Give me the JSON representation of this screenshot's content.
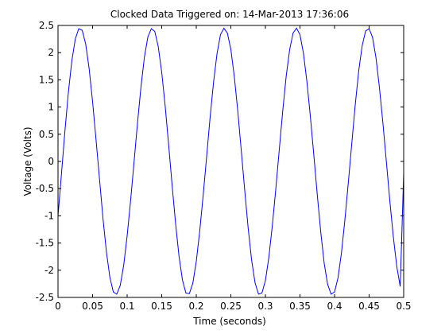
{
  "chart_data": {
    "type": "line",
    "title": "Clocked Data Triggered on: 14-Mar-2013 17:36:06",
    "xlabel": "Time (seconds)",
    "ylabel": "Voltage (Volts)",
    "xlim": [
      0,
      0.5
    ],
    "ylim": [
      -2.5,
      2.5
    ],
    "xticks": [
      0,
      0.05,
      0.1,
      0.15,
      0.2,
      0.25,
      0.3,
      0.35,
      0.4,
      0.45,
      0.5
    ],
    "xtick_labels": [
      "0",
      "0.05",
      "0.1",
      "0.15",
      "0.2",
      "0.25",
      "0.3",
      "0.35",
      "0.4",
      "0.45",
      "0.5"
    ],
    "yticks": [
      -2.5,
      -2,
      -1.5,
      -1,
      -0.5,
      0,
      0.5,
      1,
      1.5,
      2,
      2.5
    ],
    "ytick_labels": [
      "-2.5",
      "-2",
      "-1.5",
      "-1",
      "-0.5",
      "0",
      "0.5",
      "1",
      "1.5",
      "2",
      "2.5"
    ],
    "grid": false,
    "legend": false,
    "line_color": "#0000ff",
    "series": [
      {
        "x": [
          0,
          0.005,
          0.01,
          0.015,
          0.02,
          0.025,
          0.03,
          0.035,
          0.04,
          0.045,
          0.05,
          0.055,
          0.06,
          0.065,
          0.07,
          0.075,
          0.08,
          0.085,
          0.09,
          0.095,
          0.1,
          0.105,
          0.11,
          0.115,
          0.12,
          0.125,
          0.13,
          0.135,
          0.14,
          0.145,
          0.15,
          0.155,
          0.16,
          0.165,
          0.17,
          0.175,
          0.18,
          0.185,
          0.19,
          0.195,
          0.2,
          0.205,
          0.21,
          0.215,
          0.22,
          0.225,
          0.23,
          0.235,
          0.24,
          0.245,
          0.25,
          0.255,
          0.26,
          0.265,
          0.27,
          0.275,
          0.28,
          0.285,
          0.29,
          0.295,
          0.3,
          0.305,
          0.31,
          0.315,
          0.32,
          0.325,
          0.33,
          0.335,
          0.34,
          0.345,
          0.35,
          0.355,
          0.36,
          0.365,
          0.37,
          0.375,
          0.38,
          0.385,
          0.39,
          0.395,
          0.4,
          0.405,
          0.41,
          0.415,
          0.42,
          0.425,
          0.43,
          0.435,
          0.44,
          0.445,
          0.45,
          0.455,
          0.46,
          0.465,
          0.47,
          0.475,
          0.48,
          0.485,
          0.49,
          0.495,
          0.5
        ],
        "y": [
          -1.0,
          -0.23,
          0.56,
          1.27,
          1.85,
          2.25,
          2.44,
          2.41,
          2.16,
          1.71,
          1.1,
          0.4,
          -0.32,
          -1.04,
          -1.66,
          -2.13,
          -2.4,
          -2.44,
          -2.28,
          -1.91,
          -1.37,
          -0.72,
          -0.01,
          0.71,
          1.37,
          1.92,
          2.29,
          2.44,
          2.39,
          2.11,
          1.64,
          1.02,
          0.31,
          -0.43,
          -1.13,
          -1.74,
          -2.18,
          -2.42,
          -2.43,
          -2.24,
          -1.84,
          -1.28,
          -0.62,
          0.09,
          0.81,
          1.46,
          1.98,
          2.33,
          2.45,
          2.36,
          2.06,
          1.56,
          0.93,
          0.21,
          -0.52,
          -1.22,
          -1.81,
          -2.23,
          -2.44,
          -2.42,
          -2.19,
          -1.76,
          -1.18,
          -0.51,
          0.21,
          0.92,
          1.56,
          2.05,
          2.36,
          2.45,
          2.33,
          1.99,
          1.47,
          0.83,
          0.12,
          -0.61,
          -1.29,
          -1.87,
          -2.26,
          -2.44,
          -2.4,
          -2.14,
          -1.68,
          -1.07,
          -0.38,
          0.34,
          1.05,
          1.67,
          2.13,
          2.4,
          2.44,
          2.28,
          1.9,
          1.35,
          0.7,
          -0.01,
          -0.73,
          -1.38,
          -1.93,
          -2.3,
          -0.22
        ]
      }
    ]
  }
}
